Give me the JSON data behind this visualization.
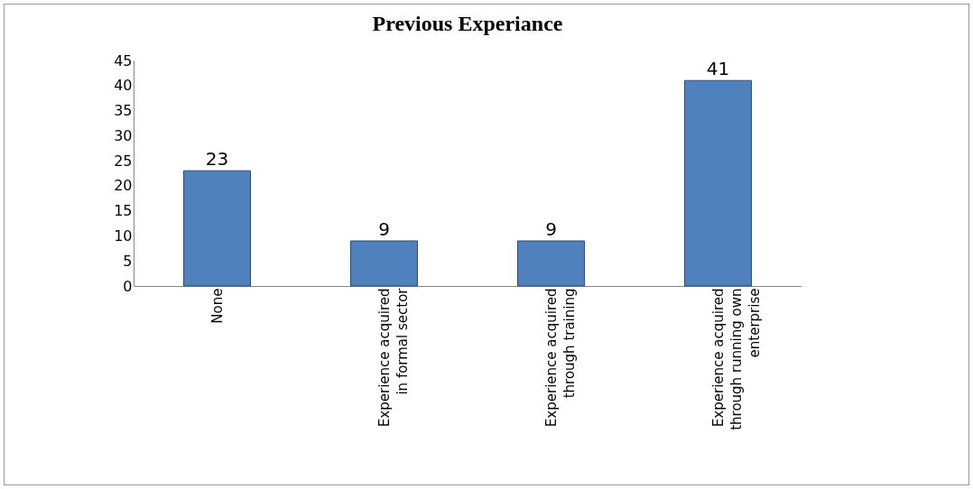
{
  "chart_data": {
    "type": "bar",
    "title": "Previous Experiance",
    "categories": [
      "None",
      "Experience acquired in formal sector",
      "Experience acquired through training",
      "Experience acquired through running own enterprise"
    ],
    "values": [
      23,
      9,
      9,
      41
    ],
    "color": "#4f81bd",
    "ylim": [
      0,
      45
    ],
    "yticks": [
      0,
      5,
      10,
      15,
      20,
      25,
      30,
      35,
      40,
      45
    ],
    "grid": false,
    "data_labels": true
  }
}
